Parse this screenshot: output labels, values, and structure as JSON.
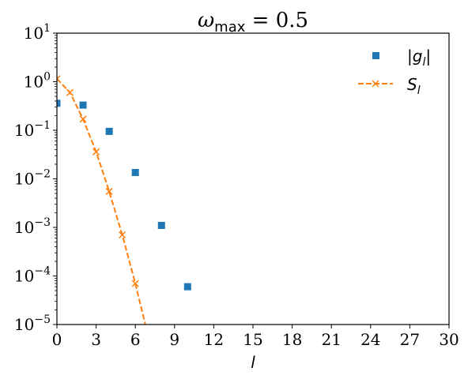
{
  "chart_data": {
    "type": "scatter",
    "title": "ωmax = 0.5",
    "title_parts": {
      "symbol": "ω",
      "subscript": "max",
      "rest": " = 0.5"
    },
    "xlabel": "l",
    "ylabel": "",
    "xlim": [
      0,
      30
    ],
    "ylim_log10": [
      -5,
      1
    ],
    "yscale": "log",
    "grid": false,
    "legend_position": "top-right",
    "x_ticks": [
      0,
      3,
      6,
      9,
      12,
      15,
      18,
      21,
      24,
      27,
      30
    ],
    "y_ticks": [
      {
        "exp": 1,
        "base": "10",
        "power": "1"
      },
      {
        "exp": 0,
        "base": "10",
        "power": "0"
      },
      {
        "exp": -1,
        "base": "10",
        "power": "−1"
      },
      {
        "exp": -2,
        "base": "10",
        "power": "−2"
      },
      {
        "exp": -3,
        "base": "10",
        "power": "−3"
      },
      {
        "exp": -4,
        "base": "10",
        "power": "−4"
      },
      {
        "exp": -5,
        "base": "10",
        "power": "−5"
      }
    ],
    "series": [
      {
        "name": "|g_l|",
        "legend_label": "|gl|",
        "style": "square-markers",
        "color": "#1f77b4",
        "points": [
          {
            "x": 0,
            "y": 0.36
          },
          {
            "x": 2,
            "y": 0.33
          },
          {
            "x": 4,
            "y": 0.095
          },
          {
            "x": 6,
            "y": 0.0135
          },
          {
            "x": 8,
            "y": 0.0011
          },
          {
            "x": 10,
            "y": 6e-05
          }
        ]
      },
      {
        "name": "S_l",
        "legend_label": "Sl",
        "style": "dashed-line-x-markers",
        "color": "#ff7f0e",
        "points": [
          {
            "x": 0,
            "y": 1.15
          },
          {
            "x": 1,
            "y": 0.6
          },
          {
            "x": 2,
            "y": 0.17
          },
          {
            "x": 3,
            "y": 0.036
          },
          {
            "x": 4,
            "y": 0.0055
          },
          {
            "x": 5,
            "y": 0.0007
          },
          {
            "x": 6,
            "y": 7e-05
          },
          {
            "x": 7,
            "y": 5.5e-06
          }
        ]
      }
    ]
  }
}
